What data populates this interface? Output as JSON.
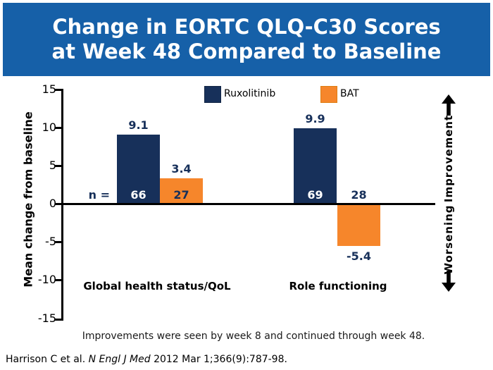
{
  "title": {
    "line1": "Change in EORTC QLQ-C30 Scores",
    "line2": "at Week 48 Compared to Baseline"
  },
  "chart_data": {
    "type": "bar",
    "title": "Change in EORTC QLQ-C30 Scores at Week 48 Compared to Baseline",
    "categories": [
      "Global health status/QoL",
      "Role functioning"
    ],
    "series": [
      {
        "name": "Ruxolitinib",
        "color": "#17305A",
        "values": [
          9.1,
          9.9
        ],
        "n": [
          66,
          69
        ]
      },
      {
        "name": "BAT",
        "color": "#F6862B",
        "values": [
          3.4,
          -5.4
        ],
        "n": [
          27,
          28
        ]
      }
    ],
    "ylabel": "Mean change from baseline",
    "xlabel": "",
    "ylim": [
      -15,
      15
    ],
    "yticks": [
      15,
      10,
      5,
      0,
      -5,
      -10,
      -15
    ],
    "n_prefix": "n =",
    "grid": false,
    "legend_position": "top"
  },
  "annotations": {
    "improvement": "Improvement",
    "worsening": "Worsening"
  },
  "footnote": "Improvements were seen by week 8 and continued through week 48.",
  "citation": {
    "prefix": "Harrison C et al. ",
    "journal": "N Engl J Med",
    "suffix": " 2012 Mar 1;366(9):787-98."
  },
  "colors": {
    "header_bg": "#1660A8",
    "ruxolitinib": "#17305A",
    "bat": "#F6862B",
    "axis": "#000000"
  }
}
